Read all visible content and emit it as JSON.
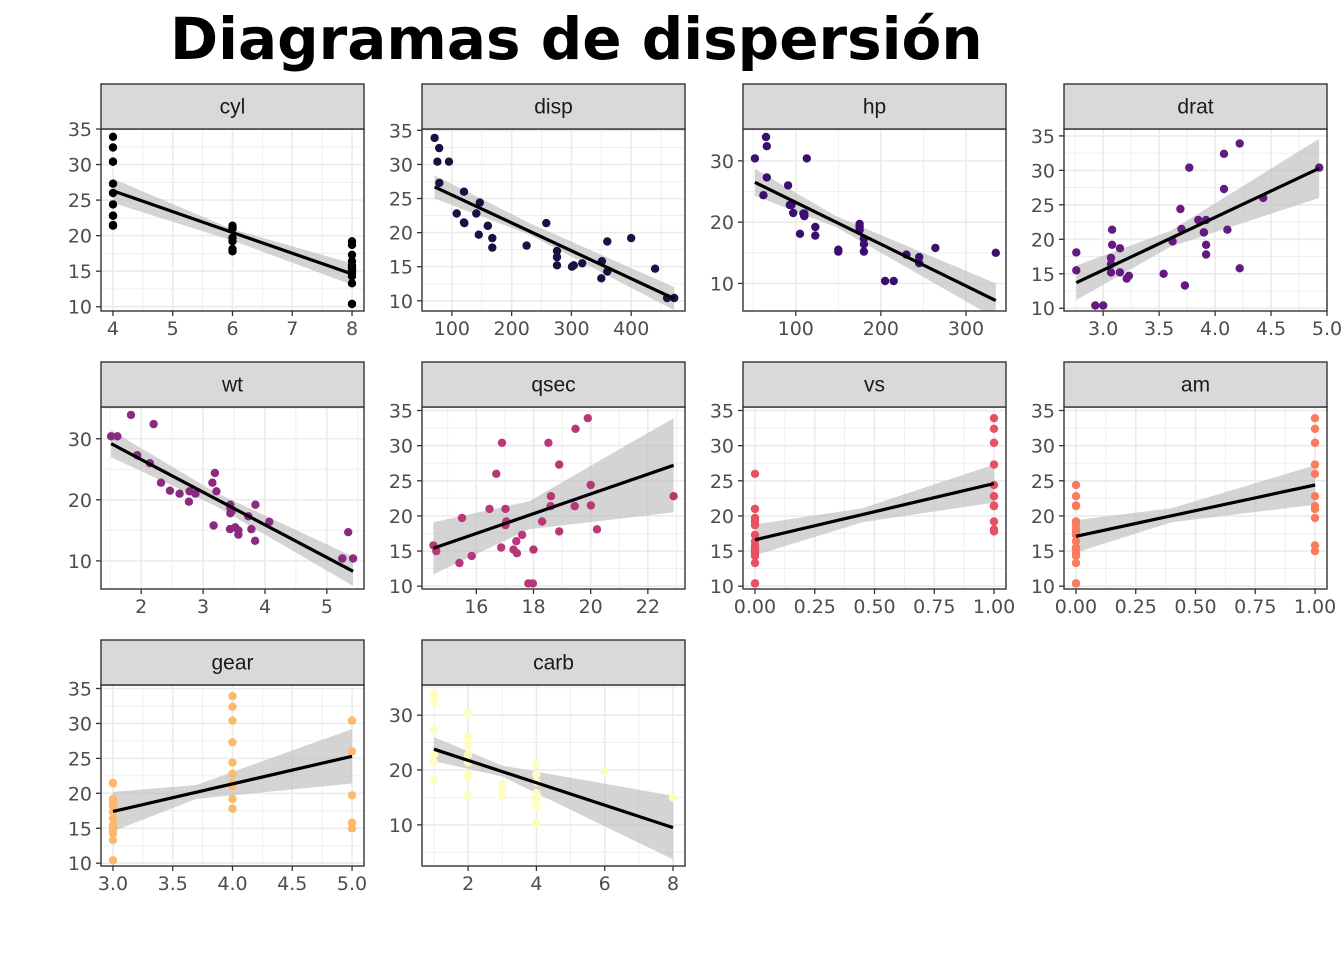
{
  "title": "Diagramas de dispersión",
  "colors": {
    "strip_bg": "#d9d9d9",
    "panel_border": "#333333",
    "grid": "#ebebeb",
    "ribbon": "#bdbdbd",
    "fit_line": "#000000"
  },
  "chart_data": [
    {
      "type": "scatter",
      "facet": "cyl",
      "color": "#000004",
      "xlim": [
        3.8,
        8.2
      ],
      "xticks": [
        4,
        5,
        6,
        7,
        8
      ],
      "xtick_labels": [
        "4",
        "5",
        "6",
        "7",
        "8"
      ],
      "ylim": [
        9.4,
        35.0
      ],
      "yticks": [
        10,
        15,
        20,
        25,
        30,
        35
      ],
      "ytick_labels": [
        "10",
        "15",
        "20",
        "25",
        "30",
        "35"
      ],
      "x": [
        4,
        4,
        4,
        4,
        4,
        4,
        4,
        4,
        4,
        4,
        4,
        6,
        6,
        6,
        6,
        6,
        6,
        6,
        8,
        8,
        8,
        8,
        8,
        8,
        8,
        8,
        8,
        8,
        8,
        8,
        8,
        8
      ],
      "y": [
        22.8,
        24.4,
        22.8,
        32.4,
        30.4,
        33.9,
        21.5,
        27.3,
        26.0,
        30.4,
        21.4,
        21.0,
        21.0,
        21.4,
        18.1,
        19.2,
        17.8,
        19.7,
        18.7,
        14.3,
        16.4,
        17.3,
        15.2,
        10.4,
        10.4,
        14.7,
        15.5,
        15.2,
        13.3,
        19.2,
        15.8,
        15.0
      ],
      "fit": {
        "x": [
          4,
          8
        ],
        "y": [
          26.3,
          14.6
        ]
      },
      "band": {
        "x": [
          4,
          6,
          8
        ],
        "lower": [
          24.6,
          19.3,
          13.1
        ],
        "upper": [
          28.0,
          20.9,
          16.1
        ]
      }
    },
    {
      "type": "scatter",
      "facet": "disp",
      "color": "#1b1044",
      "xlim": [
        50,
        490
      ],
      "xticks": [
        100,
        200,
        300,
        400
      ],
      "xtick_labels": [
        "100",
        "200",
        "300",
        "400"
      ],
      "ylim": [
        8.5,
        35.2
      ],
      "yticks": [
        10,
        15,
        20,
        25,
        30,
        35
      ],
      "ytick_labels": [
        "10",
        "15",
        "20",
        "25",
        "30",
        "35"
      ],
      "x": [
        160,
        160,
        108,
        258,
        360,
        225,
        360,
        146.7,
        140.8,
        167.6,
        167.6,
        275.8,
        275.8,
        275.8,
        472,
        460,
        440,
        78.7,
        75.7,
        71.1,
        120.1,
        318,
        304,
        350,
        400,
        79,
        120.3,
        95.1,
        351,
        145,
        301,
        121
      ],
      "y": [
        21.0,
        21.0,
        22.8,
        21.4,
        18.7,
        18.1,
        14.3,
        24.4,
        22.8,
        19.2,
        17.8,
        16.4,
        17.3,
        15.2,
        10.4,
        10.4,
        14.7,
        32.4,
        30.4,
        33.9,
        21.5,
        15.5,
        15.2,
        13.3,
        19.2,
        27.3,
        26.0,
        30.4,
        15.8,
        19.7,
        15.0,
        21.4
      ],
      "fit": {
        "x": [
          71.1,
          472
        ],
        "y": [
          26.7,
          10.3
        ]
      },
      "band": {
        "x": [
          71.1,
          230,
          472
        ],
        "lower": [
          25.0,
          19.7,
          8.6
        ],
        "upper": [
          28.4,
          21.4,
          12.0
        ]
      }
    },
    {
      "type": "scatter",
      "facet": "hp",
      "color": "#3b0f70",
      "xlim": [
        38,
        347
      ],
      "xticks": [
        100,
        200,
        300
      ],
      "xtick_labels": [
        "100",
        "200",
        "300"
      ],
      "ylim": [
        5.5,
        35.2
      ],
      "yticks": [
        10,
        20,
        30
      ],
      "ytick_labels": [
        "10",
        "20",
        "30"
      ],
      "x": [
        110,
        110,
        93,
        110,
        175,
        105,
        245,
        62,
        95,
        123,
        123,
        180,
        180,
        180,
        205,
        215,
        230,
        66,
        52,
        65,
        97,
        150,
        150,
        245,
        175,
        66,
        91,
        113,
        264,
        175,
        335,
        109
      ],
      "y": [
        21.0,
        21.0,
        22.8,
        21.4,
        18.7,
        18.1,
        14.3,
        24.4,
        22.8,
        19.2,
        17.8,
        16.4,
        17.3,
        15.2,
        10.4,
        10.4,
        14.7,
        32.4,
        30.4,
        33.9,
        21.5,
        15.5,
        15.2,
        13.3,
        19.2,
        27.3,
        26.0,
        30.4,
        15.8,
        19.7,
        15.0,
        21.4
      ],
      "fit": {
        "x": [
          52,
          335
        ],
        "y": [
          26.5,
          7.2
        ]
      },
      "band": {
        "x": [
          52,
          147,
          335
        ],
        "lower": [
          24.3,
          19.2,
          4.3
        ],
        "upper": [
          28.7,
          21.0,
          10.0
        ]
      }
    },
    {
      "type": "scatter",
      "facet": "drat",
      "color": "#641a80",
      "xlim": [
        2.65,
        5.0
      ],
      "xticks": [
        3.0,
        3.5,
        4.0,
        4.5,
        5.0
      ],
      "xtick_labels": [
        "3.0",
        "3.5",
        "4.0",
        "4.5",
        "5.0"
      ],
      "ylim": [
        9.6,
        36.0
      ],
      "yticks": [
        10,
        15,
        20,
        25,
        30,
        35
      ],
      "ytick_labels": [
        "10",
        "15",
        "20",
        "25",
        "30",
        "35"
      ],
      "x": [
        3.9,
        3.9,
        3.85,
        3.08,
        3.15,
        2.76,
        3.21,
        3.69,
        3.92,
        3.92,
        3.92,
        3.07,
        3.07,
        3.07,
        2.93,
        3.0,
        3.23,
        4.08,
        4.93,
        4.22,
        3.7,
        2.76,
        3.15,
        3.73,
        3.08,
        4.08,
        4.43,
        3.77,
        4.22,
        3.62,
        3.54,
        4.11
      ],
      "y": [
        21.0,
        21.0,
        22.8,
        21.4,
        18.7,
        18.1,
        14.3,
        24.4,
        22.8,
        19.2,
        17.8,
        16.4,
        17.3,
        15.2,
        10.4,
        10.4,
        14.7,
        32.4,
        30.4,
        33.9,
        21.5,
        15.5,
        15.2,
        13.3,
        19.2,
        27.3,
        26.0,
        30.4,
        15.8,
        19.7,
        15.0,
        21.4
      ],
      "fit": {
        "x": [
          2.76,
          4.93
        ],
        "y": [
          13.7,
          30.3
        ]
      },
      "band": {
        "x": [
          2.76,
          3.6,
          4.93
        ],
        "lower": [
          11.2,
          18.9,
          26.0
        ],
        "upper": [
          16.2,
          21.2,
          34.6
        ]
      }
    },
    {
      "type": "scatter",
      "facet": "wt",
      "color": "#8c2981",
      "xlim": [
        1.35,
        5.6
      ],
      "xticks": [
        2,
        3,
        4,
        5
      ],
      "xtick_labels": [
        "2",
        "3",
        "4",
        "5"
      ],
      "ylim": [
        5.4,
        35.2
      ],
      "yticks": [
        10,
        20,
        30
      ],
      "ytick_labels": [
        "10",
        "20",
        "30"
      ],
      "x": [
        2.62,
        2.875,
        2.32,
        3.215,
        3.44,
        3.46,
        3.57,
        3.19,
        3.15,
        3.44,
        3.44,
        4.07,
        3.73,
        3.78,
        5.25,
        5.424,
        5.345,
        2.2,
        1.615,
        1.835,
        2.465,
        3.52,
        3.435,
        3.84,
        3.845,
        1.935,
        2.14,
        1.513,
        3.17,
        2.77,
        3.57,
        2.78
      ],
      "y": [
        21.0,
        21.0,
        22.8,
        21.4,
        18.7,
        18.1,
        14.3,
        24.4,
        22.8,
        19.2,
        17.8,
        16.4,
        17.3,
        15.2,
        10.4,
        10.4,
        14.7,
        32.4,
        30.4,
        33.9,
        21.5,
        15.5,
        15.2,
        13.3,
        19.2,
        27.3,
        26.0,
        30.4,
        15.8,
        19.7,
        15.0,
        21.4
      ],
      "fit": {
        "x": [
          1.513,
          5.424
        ],
        "y": [
          29.2,
          8.3
        ]
      },
      "band": {
        "x": [
          1.513,
          3.2,
          5.424
        ],
        "lower": [
          27.0,
          19.0,
          5.9
        ],
        "upper": [
          31.4,
          21.2,
          10.7
        ]
      }
    },
    {
      "type": "scatter",
      "facet": "qsec",
      "color": "#b73779",
      "xlim": [
        14.1,
        23.3
      ],
      "xticks": [
        16,
        18,
        20,
        22
      ],
      "xtick_labels": [
        "16",
        "18",
        "20",
        "22"
      ],
      "ylim": [
        9.6,
        35.5
      ],
      "yticks": [
        10,
        15,
        20,
        25,
        30,
        35
      ],
      "ytick_labels": [
        "10",
        "15",
        "20",
        "25",
        "30",
        "35"
      ],
      "x": [
        16.46,
        17.02,
        18.61,
        19.44,
        17.02,
        20.22,
        15.84,
        20.0,
        22.9,
        18.3,
        18.9,
        17.4,
        17.6,
        18.0,
        17.98,
        17.82,
        17.42,
        19.47,
        18.52,
        19.9,
        20.01,
        16.87,
        17.3,
        15.41,
        17.05,
        18.9,
        16.7,
        16.9,
        14.5,
        15.5,
        14.6,
        18.6
      ],
      "y": [
        21.0,
        21.0,
        22.8,
        21.4,
        18.7,
        18.1,
        14.3,
        24.4,
        22.8,
        19.2,
        17.8,
        16.4,
        17.3,
        15.2,
        10.4,
        10.4,
        14.7,
        32.4,
        30.4,
        33.9,
        21.5,
        15.5,
        15.2,
        13.3,
        19.2,
        27.3,
        26.0,
        30.4,
        15.8,
        19.7,
        15.0,
        21.4
      ],
      "fit": {
        "x": [
          14.5,
          22.9
        ],
        "y": [
          15.4,
          27.2
        ]
      },
      "band": {
        "x": [
          14.5,
          17.85,
          22.9
        ],
        "lower": [
          11.7,
          18.1,
          20.5
        ],
        "upper": [
          19.1,
          22.1,
          33.9
        ]
      }
    },
    {
      "type": "scatter",
      "facet": "vs",
      "color": "#e75263",
      "xlim": [
        -0.05,
        1.05
      ],
      "xticks": [
        0,
        0.25,
        0.5,
        0.75,
        1.0
      ],
      "xtick_labels": [
        "0.00",
        "0.25",
        "0.50",
        "0.75",
        "1.00"
      ],
      "ylim": [
        9.6,
        35.5
      ],
      "yticks": [
        10,
        15,
        20,
        25,
        30,
        35
      ],
      "ytick_labels": [
        "10",
        "15",
        "20",
        "25",
        "30",
        "35"
      ],
      "x": [
        0,
        0,
        1,
        1,
        0,
        1,
        0,
        1,
        1,
        1,
        1,
        0,
        0,
        0,
        0,
        0,
        0,
        1,
        1,
        1,
        1,
        0,
        0,
        0,
        0,
        1,
        0,
        1,
        0,
        0,
        0,
        1
      ],
      "y": [
        21.0,
        21.0,
        22.8,
        21.4,
        18.7,
        18.1,
        14.3,
        24.4,
        22.8,
        19.2,
        17.8,
        16.4,
        17.3,
        15.2,
        10.4,
        10.4,
        14.7,
        32.4,
        30.4,
        33.9,
        21.5,
        15.5,
        15.2,
        13.3,
        19.2,
        27.3,
        26.0,
        30.4,
        15.8,
        19.7,
        15.0,
        21.4
      ],
      "fit": {
        "x": [
          0,
          1
        ],
        "y": [
          16.6,
          24.6
        ]
      },
      "band": {
        "x": [
          0,
          0.45,
          1
        ],
        "lower": [
          14.4,
          19.1,
          21.9
        ],
        "upper": [
          18.8,
          21.1,
          27.3
        ]
      }
    },
    {
      "type": "scatter",
      "facet": "am",
      "color": "#fa7c5e",
      "xlim": [
        -0.05,
        1.05
      ],
      "xticks": [
        0,
        0.25,
        0.5,
        0.75,
        1.0
      ],
      "xtick_labels": [
        "0.00",
        "0.25",
        "0.50",
        "0.75",
        "1.00"
      ],
      "ylim": [
        9.6,
        35.5
      ],
      "yticks": [
        10,
        15,
        20,
        25,
        30,
        35
      ],
      "ytick_labels": [
        "10",
        "15",
        "20",
        "25",
        "30",
        "35"
      ],
      "x": [
        1,
        1,
        1,
        0,
        0,
        0,
        0,
        0,
        0,
        0,
        0,
        0,
        0,
        0,
        0,
        0,
        0,
        1,
        1,
        1,
        0,
        0,
        0,
        0,
        0,
        1,
        1,
        1,
        1,
        1,
        1,
        1
      ],
      "y": [
        21.0,
        21.0,
        22.8,
        21.4,
        18.7,
        18.1,
        14.3,
        24.4,
        22.8,
        19.2,
        17.8,
        16.4,
        17.3,
        15.2,
        10.4,
        10.4,
        14.7,
        32.4,
        30.4,
        33.9,
        21.5,
        15.5,
        15.2,
        13.3,
        19.2,
        27.3,
        26.0,
        30.4,
        15.8,
        19.7,
        15.0,
        21.4
      ],
      "fit": {
        "x": [
          0,
          1
        ],
        "y": [
          17.1,
          24.4
        ]
      },
      "band": {
        "x": [
          0,
          0.4,
          1
        ],
        "lower": [
          14.8,
          19.1,
          21.6
        ],
        "upper": [
          19.4,
          21.1,
          27.2
        ]
      }
    },
    {
      "type": "scatter",
      "facet": "gear",
      "color": "#fdb96a",
      "xlim": [
        2.9,
        5.1
      ],
      "xticks": [
        3.0,
        3.5,
        4.0,
        4.5,
        5.0
      ],
      "xtick_labels": [
        "3.0",
        "3.5",
        "4.0",
        "4.5",
        "5.0"
      ],
      "ylim": [
        9.6,
        35.5
      ],
      "yticks": [
        10,
        15,
        20,
        25,
        30,
        35
      ],
      "ytick_labels": [
        "10",
        "15",
        "20",
        "25",
        "30",
        "35"
      ],
      "x": [
        4,
        4,
        4,
        3,
        3,
        3,
        3,
        4,
        4,
        4,
        4,
        3,
        3,
        3,
        3,
        3,
        3,
        4,
        4,
        4,
        3,
        3,
        3,
        3,
        3,
        4,
        5,
        5,
        5,
        5,
        5,
        4
      ],
      "y": [
        21.0,
        21.0,
        22.8,
        21.4,
        18.7,
        18.1,
        14.3,
        24.4,
        22.8,
        19.2,
        17.8,
        16.4,
        17.3,
        15.2,
        10.4,
        10.4,
        14.7,
        32.4,
        30.4,
        33.9,
        21.5,
        15.5,
        15.2,
        13.3,
        19.2,
        27.3,
        26.0,
        30.4,
        15.8,
        19.7,
        15.0,
        21.4
      ],
      "fit": {
        "x": [
          3,
          5
        ],
        "y": [
          17.4,
          25.3
        ]
      },
      "band": {
        "x": [
          3,
          3.7,
          5
        ],
        "lower": [
          14.6,
          19.2,
          21.4
        ],
        "upper": [
          20.2,
          21.2,
          29.2
        ]
      }
    },
    {
      "type": "scatter",
      "facet": "carb",
      "color": "#fcfdbf",
      "xlim": [
        0.65,
        8.35
      ],
      "xticks": [
        2,
        4,
        6,
        8
      ],
      "xtick_labels": [
        "2",
        "4",
        "6",
        "8"
      ],
      "ylim": [
        2.5,
        35.5
      ],
      "yticks": [
        10,
        20,
        30
      ],
      "ytick_labels": [
        "10",
        "20",
        "30"
      ],
      "x": [
        4,
        4,
        1,
        1,
        2,
        1,
        4,
        2,
        2,
        4,
        4,
        3,
        3,
        3,
        4,
        4,
        4,
        1,
        2,
        1,
        1,
        2,
        2,
        4,
        2,
        1,
        2,
        2,
        4,
        6,
        8,
        2
      ],
      "y": [
        21.0,
        21.0,
        22.8,
        21.4,
        18.7,
        18.1,
        14.3,
        24.4,
        22.8,
        19.2,
        17.8,
        16.4,
        17.3,
        15.2,
        10.4,
        10.4,
        14.7,
        32.4,
        30.4,
        33.9,
        21.5,
        15.5,
        15.2,
        13.3,
        19.2,
        27.3,
        26.0,
        30.4,
        15.8,
        19.7,
        15.0,
        21.4
      ],
      "fit": {
        "x": [
          1,
          8
        ],
        "y": [
          23.8,
          9.5
        ]
      },
      "band": {
        "x": [
          1,
          3,
          8
        ],
        "lower": [
          21.6,
          18.8,
          3.7
        ],
        "upper": [
          26.0,
          20.8,
          15.3
        ]
      }
    }
  ]
}
